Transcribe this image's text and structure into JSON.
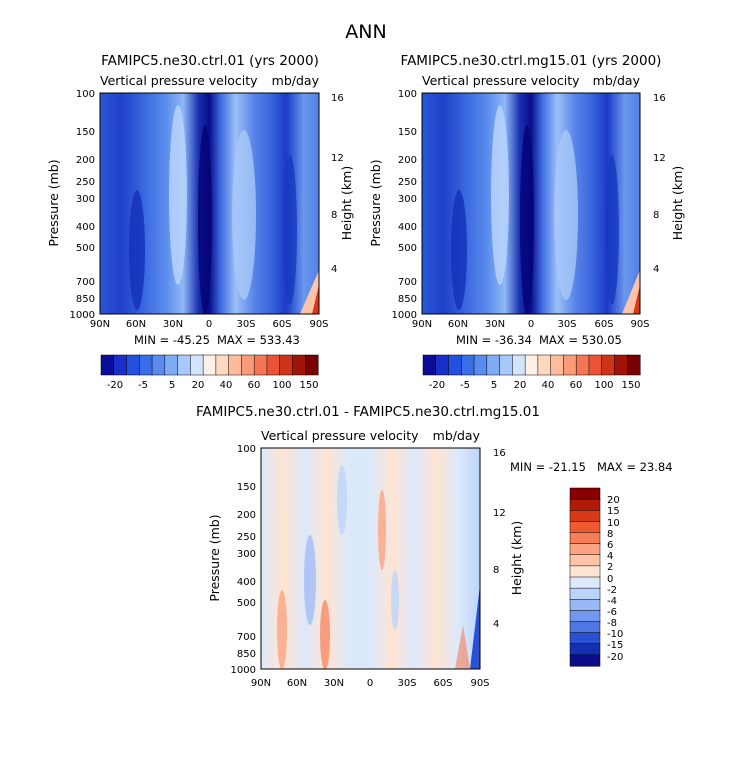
{
  "page_title": "ANN",
  "colors": {
    "negative_dark": "#0c0c9a",
    "negative_mid": "#3366e6",
    "negative_light": "#a9c8ff",
    "neutral_pale": "#ffe4d2",
    "positive_mid": "#f46a42",
    "positive_dark": "#8a0000"
  },
  "chart_data": [
    {
      "type": "heatmap",
      "title": "FAMIPC5.ne30.ctrl.01 (yrs 2000)",
      "subtitle_left": "Vertical pressure velocity",
      "subtitle_right": "mb/day",
      "ylabel": "Pressure (mb)",
      "ylabel_right": "Height (km)",
      "x_ticks": [
        "90N",
        "60N",
        "30N",
        "0",
        "30S",
        "60S",
        "90S"
      ],
      "y_ticks": [
        100,
        150,
        200,
        250,
        300,
        400,
        500,
        700,
        850,
        1000
      ],
      "y_ticks_right": [
        16,
        12,
        8,
        4
      ],
      "min_label": "MIN = -45.25",
      "max_label": "MAX = 533.43",
      "min": -45.25,
      "max": 533.43,
      "colorbar_labels": [
        "-20",
        "-5",
        "5",
        "20",
        "40",
        "60",
        "100",
        "150"
      ],
      "colorbar_colors": [
        "#0c0c9a",
        "#1830c8",
        "#2450e0",
        "#3a6ee8",
        "#5a8cf0",
        "#80acf6",
        "#a9c8ff",
        "#d3e4ff",
        "#fff0e6",
        "#ffd8c0",
        "#ffbc9c",
        "#fa9a78",
        "#f47656",
        "#ea5434",
        "#d03418",
        "#a01408",
        "#780000"
      ]
    },
    {
      "type": "heatmap",
      "title": "FAMIPC5.ne30.ctrl.mg15.01 (yrs 2000)",
      "subtitle_left": "Vertical pressure velocity",
      "subtitle_right": "mb/day",
      "ylabel": "Pressure (mb)",
      "ylabel_right": "Height (km)",
      "x_ticks": [
        "90N",
        "60N",
        "30N",
        "0",
        "30S",
        "60S",
        "90S"
      ],
      "y_ticks": [
        100,
        150,
        200,
        250,
        300,
        400,
        500,
        700,
        850,
        1000
      ],
      "y_ticks_right": [
        16,
        12,
        8,
        4
      ],
      "min_label": "MIN = -36.34",
      "max_label": "MAX = 530.05",
      "min": -36.34,
      "max": 530.05,
      "colorbar_labels": [
        "-20",
        "-5",
        "5",
        "20",
        "40",
        "60",
        "100",
        "150"
      ],
      "colorbar_colors": [
        "#0c0c9a",
        "#1830c8",
        "#2450e0",
        "#3a6ee8",
        "#5a8cf0",
        "#80acf6",
        "#a9c8ff",
        "#d3e4ff",
        "#fff0e6",
        "#ffd8c0",
        "#ffbc9c",
        "#fa9a78",
        "#f47656",
        "#ea5434",
        "#d03418",
        "#a01408",
        "#780000"
      ]
    },
    {
      "type": "heatmap",
      "title": "FAMIPC5.ne30.ctrl.01 - FAMIPC5.ne30.ctrl.mg15.01",
      "subtitle_left": "Vertical pressure velocity",
      "subtitle_right": "mb/day",
      "ylabel": "Pressure (mb)",
      "ylabel_right": "Height (km)",
      "x_ticks": [
        "90N",
        "60N",
        "30N",
        "0",
        "30S",
        "60S",
        "90S"
      ],
      "y_ticks": [
        100,
        150,
        200,
        250,
        300,
        400,
        500,
        700,
        850,
        1000
      ],
      "y_ticks_right": [
        16,
        12,
        8,
        4
      ],
      "min_label": "MIN = -21.15",
      "max_label": "MAX =  23.84",
      "min": -21.15,
      "max": 23.84,
      "colorbar_labels": [
        "20",
        "15",
        "10",
        "8",
        "6",
        "4",
        "2",
        "0",
        "-2",
        "-4",
        "-6",
        "-8",
        "-10",
        "-15",
        "-20"
      ],
      "colorbar_colors": [
        "#8a0000",
        "#b01a08",
        "#d83a18",
        "#f05a30",
        "#f87e58",
        "#fca482",
        "#ffc4a8",
        "#ffe4d2",
        "#dce9fb",
        "#bcd4fa",
        "#9ab8f5",
        "#7498ee",
        "#4e76e4",
        "#2a50d4",
        "#1230b0",
        "#0c0c8a"
      ]
    }
  ]
}
